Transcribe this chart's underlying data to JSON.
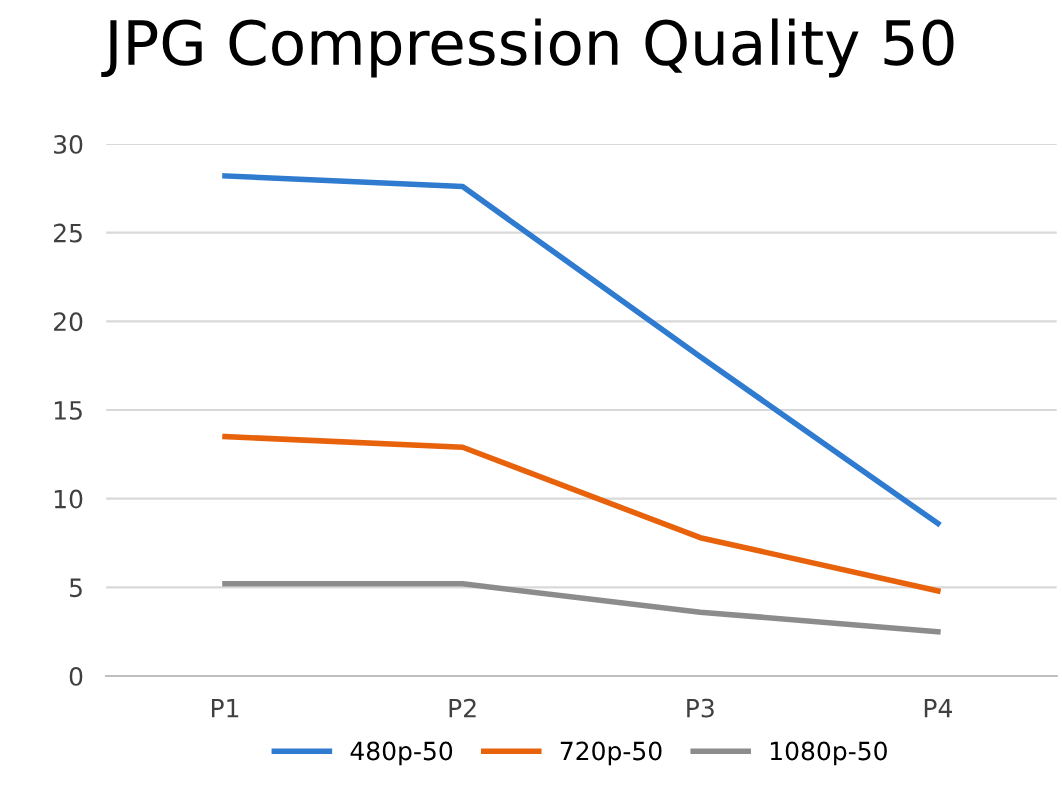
{
  "chart_data": {
    "type": "line",
    "title": "JPG Compression Quality 50",
    "categories": [
      "P1",
      "P2",
      "P3",
      "P4"
    ],
    "series": [
      {
        "name": "480p-50",
        "color": "#2e7bd0",
        "values": [
          28.2,
          27.6,
          18,
          8.6
        ]
      },
      {
        "name": "720p-50",
        "color": "#e8620c",
        "values": [
          13.5,
          12.9,
          7.8,
          4.8
        ]
      },
      {
        "name": "1080p-50",
        "color": "#8c8c8c",
        "values": [
          5.2,
          5.2,
          3.6,
          2.5
        ]
      }
    ],
    "ylim": [
      0,
      30
    ],
    "yticks": [
      0,
      5,
      10,
      15,
      20,
      25,
      30
    ],
    "grid": "y",
    "legend": "bottom"
  }
}
